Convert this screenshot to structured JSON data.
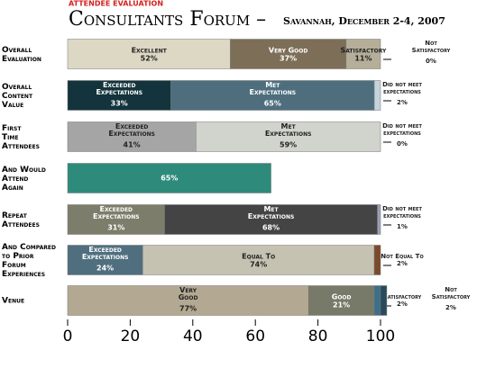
{
  "chart_data": {
    "type": "stacked-bar",
    "kicker": "ATTENDEE EVALUATION",
    "title": "Consultants Forum –",
    "subtitle": "Savannah, December 2-4, 2007",
    "xlim": [
      0,
      100
    ],
    "xticks": [
      0,
      20,
      40,
      60,
      80,
      100
    ],
    "rows": [
      {
        "label": "Overall\nEvaluation",
        "segments": [
          {
            "name": "Excellent",
            "value": 52,
            "value_label": "52%",
            "color": "#ddd8c4"
          },
          {
            "name": "Very Good",
            "value": 37,
            "value_label": "37%",
            "color": "#7d6f57"
          },
          {
            "name": "Satisfactory",
            "value": 11,
            "value_label": "11%",
            "color": "#b5ae99"
          },
          {
            "name": "Not\nSatisfactory",
            "value": 0,
            "value_label": "0%",
            "color": "#9a9582"
          }
        ]
      },
      {
        "label": "Overall\nContent\nValue",
        "segments": [
          {
            "name": "Exceeded\nExpectations",
            "value": 33,
            "value_label": "33%",
            "color": "#13343c"
          },
          {
            "name": "Met\nExpectations",
            "value": 65,
            "value_label": "65%",
            "color": "#4e6e7e"
          },
          {
            "name": "Did not meet\nexpectations",
            "value": 2,
            "value_label": "2%",
            "color": "#c4d4dc"
          }
        ]
      },
      {
        "label": "First\nTime\nAttendees",
        "segments": [
          {
            "name": "Exceeded\nExpectations",
            "value": 41,
            "value_label": "41%",
            "color": "#a5a5a5"
          },
          {
            "name": "Met\nExpectations",
            "value": 59,
            "value_label": "59%",
            "color": "#d1d4cc"
          },
          {
            "name": "Did not meet\nexpectations",
            "value": 0,
            "value_label": "0%",
            "color": "#888888"
          }
        ]
      },
      {
        "label": "And Would\nAttend\nAgain",
        "segments": [
          {
            "value": 65,
            "value_label": "65%",
            "color": "#2e8b7c"
          }
        ]
      },
      {
        "label": "Repeat\nAttendees",
        "segments": [
          {
            "name": "Exceeded\nExpectations",
            "value": 31,
            "value_label": "31%",
            "color": "#7d7d6b"
          },
          {
            "name": "Met\nExpectations",
            "value": 68,
            "value_label": "68%",
            "color": "#444444"
          },
          {
            "name": "Did not meet\nexpectations",
            "value": 1,
            "value_label": "1%",
            "color": "#9aa0bb"
          }
        ]
      },
      {
        "label": "And Compared\nto Prior\nForum\nExperiences",
        "segments": [
          {
            "name": "Exceeded\nExpectations",
            "value": 24,
            "value_label": "24%",
            "color": "#4f6f7f"
          },
          {
            "name": "Equal To",
            "value": 74,
            "value_label": "74%",
            "color": "#c5c2b2"
          },
          {
            "name": "Not Equal To",
            "value": 2,
            "value_label": "2%",
            "color": "#7a4a2a"
          }
        ]
      },
      {
        "label": "Venue",
        "segments": [
          {
            "name": "Very\nGood",
            "value": 77,
            "value_label": "77%",
            "color": "#b3a992"
          },
          {
            "name": "Good",
            "value": 21,
            "value_label": "21%",
            "color": "#777a68"
          },
          {
            "name": "Satisfactory",
            "value": 2,
            "value_label": "2%",
            "color": "#3c6f8a"
          },
          {
            "name": "Not\nSatisfactory",
            "value": 2,
            "value_label": "2%",
            "color": "#2a4a5a"
          }
        ]
      }
    ]
  }
}
